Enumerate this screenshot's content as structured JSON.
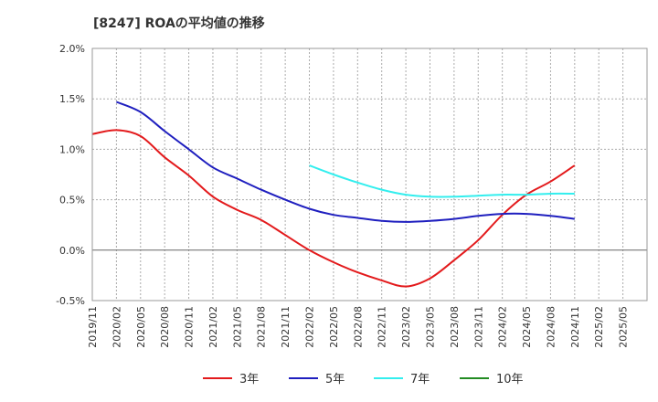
{
  "chart_data": {
    "type": "line",
    "title": "[8247]  ROAの平均値の推移",
    "xlabel": "",
    "ylabel": "",
    "ylim": [
      -0.5,
      2.0
    ],
    "yticks": [
      "2.0%",
      "1.5%",
      "1.0%",
      "0.5%",
      "0.0%",
      "-0.5%"
    ],
    "ytick_values": [
      2.0,
      1.5,
      1.0,
      0.5,
      0.0,
      -0.5
    ],
    "categories": [
      "2019/11",
      "2020/02",
      "2020/05",
      "2020/08",
      "2020/11",
      "2021/02",
      "2021/05",
      "2021/08",
      "2021/11",
      "2022/02",
      "2022/05",
      "2022/08",
      "2022/11",
      "2023/02",
      "2023/05",
      "2023/08",
      "2023/11",
      "2024/02",
      "2024/05",
      "2024/08",
      "2024/11",
      "2025/02",
      "2025/05"
    ],
    "grid": true,
    "legend_position": "bottom",
    "series": [
      {
        "name": "3年",
        "color": "#e31a1c",
        "values": [
          1.15,
          1.19,
          1.13,
          0.92,
          0.74,
          0.53,
          0.4,
          0.3,
          0.15,
          0.0,
          -0.12,
          -0.22,
          -0.3,
          -0.36,
          -0.28,
          -0.1,
          0.1,
          0.35,
          0.55,
          0.68,
          0.84,
          null,
          null
        ]
      },
      {
        "name": "5年",
        "color": "#1f1fbf",
        "values": [
          null,
          1.47,
          1.37,
          1.18,
          1.0,
          0.82,
          0.71,
          0.6,
          0.5,
          0.41,
          0.35,
          0.32,
          0.29,
          0.28,
          0.29,
          0.31,
          0.34,
          0.36,
          0.36,
          0.34,
          0.31,
          null,
          null
        ]
      },
      {
        "name": "7年",
        "color": "#33eeee",
        "values": [
          null,
          null,
          null,
          null,
          null,
          null,
          null,
          null,
          null,
          0.84,
          0.75,
          0.67,
          0.6,
          0.55,
          0.53,
          0.53,
          0.54,
          0.55,
          0.55,
          0.56,
          0.56,
          null,
          null
        ]
      },
      {
        "name": "10年",
        "color": "#228b22",
        "values": [
          null,
          null,
          null,
          null,
          null,
          null,
          null,
          null,
          null,
          null,
          null,
          null,
          null,
          null,
          null,
          null,
          null,
          null,
          null,
          null,
          null,
          null,
          null
        ]
      }
    ]
  }
}
